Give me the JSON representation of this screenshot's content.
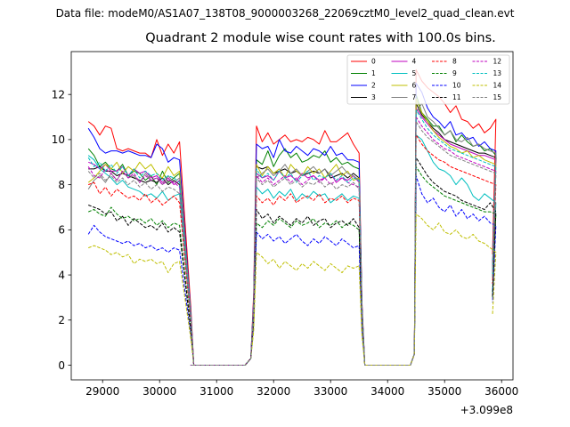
{
  "figure": {
    "suptitle": "Data file: modeM0/AS1A07_138T08_9000003268_22069cztM0_level2_quad_clean.evt",
    "title": "Quadrant 2 module wise count rates with 100.0s bins."
  },
  "chart_data": {
    "type": "line",
    "title": "Quadrant 2 module wise count rates with 100.0s bins.",
    "xlabel": "",
    "ylabel": "",
    "x_offset_label": "+3.099e8",
    "x_offset": 309900000,
    "xlim": [
      28450,
      36200
    ],
    "ylim": [
      -0.65,
      13.9
    ],
    "xticks": [
      29000,
      30000,
      31000,
      32000,
      33000,
      34000,
      35000,
      36000
    ],
    "yticks": [
      0,
      2,
      4,
      6,
      8,
      10,
      12
    ],
    "grid": false,
    "legend": {
      "location": "top-right",
      "ncol": 4
    },
    "segments": [
      {
        "start": 28750,
        "n": 17,
        "ramp_end": 30550,
        "zero_from": 30450
      },
      {
        "start": 31700,
        "n": 19,
        "ramp_start": 31600
      },
      {
        "start": 34500,
        "n": 14
      }
    ],
    "zero_gaps": [
      [
        30550,
        31500
      ],
      [
        33600,
        34400
      ]
    ],
    "series": [
      {
        "name": "0",
        "color": "#ff0000",
        "dash": "solid",
        "seg": [
          [
            10.8,
            10.6,
            10.2,
            10.6,
            10.5,
            9.6,
            9.5,
            9.6,
            9.5,
            9.4,
            9.4,
            9.2,
            10.0,
            9.3,
            9.8,
            9.4,
            9.9
          ],
          [
            10.6,
            9.9,
            10.3,
            9.8,
            10.0,
            10.2,
            9.9,
            10.0,
            9.9,
            10.1,
            10.0,
            9.8,
            10.4,
            9.9,
            9.9,
            10.1,
            10.3,
            9.8,
            9.4
          ],
          [
            13.1,
            12.6,
            12.3,
            12.1,
            11.9,
            11.6,
            11.2,
            11.5,
            10.9,
            10.8,
            10.5,
            10.7,
            10.3,
            10.5,
            10.9
          ]
        ]
      },
      {
        "name": "1",
        "color": "#008000",
        "dash": "solid",
        "seg": [
          [
            9.6,
            9.3,
            8.8,
            9.0,
            8.7,
            8.6,
            8.9,
            8.4,
            8.6,
            8.5,
            8.2,
            8.4,
            8.0,
            8.6,
            8.1,
            8.3,
            8.5
          ],
          [
            9.1,
            8.9,
            9.5,
            8.8,
            9.3,
            9.6,
            9.2,
            9.4,
            9.0,
            9.1,
            9.3,
            9.2,
            9.5,
            9.0,
            9.2,
            8.9,
            9.0,
            8.8,
            8.7
          ],
          [
            12.0,
            11.2,
            10.9,
            10.6,
            10.6,
            10.2,
            10.4,
            9.9,
            10.2,
            9.9,
            9.7,
            9.8,
            9.5,
            9.6,
            9.3
          ]
        ]
      },
      {
        "name": "2",
        "color": "#0000ff",
        "dash": "solid",
        "seg": [
          [
            10.5,
            10.1,
            9.6,
            9.4,
            9.5,
            9.5,
            9.4,
            9.5,
            9.4,
            9.3,
            9.3,
            9.2,
            9.8,
            9.6,
            9.0,
            9.2,
            9.1
          ],
          [
            9.8,
            9.6,
            9.7,
            9.2,
            10.0,
            9.5,
            9.4,
            9.7,
            9.5,
            9.3,
            9.6,
            9.5,
            9.3,
            9.7,
            9.3,
            9.4,
            9.1,
            9.1,
            9.0
          ],
          [
            12.5,
            12.1,
            11.4,
            11.0,
            10.8,
            10.5,
            10.8,
            10.2,
            10.3,
            10.0,
            10.1,
            9.7,
            9.9,
            9.6,
            9.5
          ]
        ]
      },
      {
        "name": "3",
        "color": "#000000",
        "dash": "solid",
        "seg": [
          [
            8.7,
            8.7,
            8.8,
            8.6,
            8.6,
            8.4,
            8.5,
            8.4,
            8.3,
            8.2,
            8.1,
            8.2,
            8.1,
            8.3,
            8.0,
            8.2,
            8.0
          ],
          [
            8.8,
            8.7,
            8.8,
            8.5,
            8.6,
            8.7,
            8.5,
            8.6,
            8.4,
            8.5,
            8.6,
            8.5,
            8.7,
            8.3,
            8.4,
            8.5,
            8.3,
            8.5,
            8.3
          ],
          [
            11.6,
            11.1,
            10.8,
            10.5,
            10.3,
            10.0,
            9.9,
            9.8,
            9.7,
            9.6,
            9.5,
            9.4,
            9.4,
            9.3,
            9.2
          ]
        ]
      },
      {
        "name": "4",
        "color": "#bf00bf",
        "dash": "solid",
        "seg": [
          [
            9.0,
            8.9,
            8.7,
            8.9,
            8.6,
            8.6,
            8.8,
            8.4,
            8.7,
            8.5,
            8.6,
            8.3,
            8.4,
            8.1,
            8.3,
            8.0,
            8.2
          ],
          [
            8.5,
            8.3,
            8.4,
            8.2,
            8.6,
            8.3,
            8.4,
            8.2,
            8.5,
            8.3,
            8.4,
            8.2,
            8.3,
            8.5,
            8.1,
            8.3,
            8.2,
            8.4,
            8.1
          ],
          [
            11.4,
            11.0,
            10.7,
            10.4,
            10.2,
            10.0,
            9.8,
            9.7,
            9.6,
            9.5,
            9.4,
            9.3,
            9.3,
            9.2,
            9.1
          ]
        ]
      },
      {
        "name": "5",
        "color": "#00bfbf",
        "dash": "solid",
        "seg": [
          [
            9.3,
            9.1,
            8.7,
            8.5,
            8.3,
            8.0,
            8.2,
            7.9,
            7.8,
            7.7,
            7.5,
            7.6,
            7.4,
            7.7,
            7.3,
            7.5,
            7.6
          ],
          [
            7.9,
            7.6,
            7.8,
            7.4,
            7.7,
            7.5,
            7.8,
            7.3,
            7.6,
            7.4,
            7.7,
            7.5,
            7.6,
            7.2,
            7.4,
            7.6,
            7.3,
            7.5,
            7.4
          ],
          [
            10.2,
            10.0,
            9.5,
            9.0,
            8.7,
            8.6,
            8.4,
            8.0,
            8.3,
            8.0,
            7.5,
            7.3,
            7.6,
            7.4,
            7.2
          ]
        ]
      },
      {
        "name": "6",
        "color": "#bfbf00",
        "dash": "solid",
        "seg": [
          [
            8.1,
            8.3,
            8.6,
            8.9,
            8.7,
            9.0,
            8.5,
            8.8,
            8.6,
            9.0,
            8.7,
            8.9,
            8.5,
            8.3,
            8.8,
            8.4,
            8.6
          ],
          [
            8.9,
            8.4,
            8.8,
            8.5,
            8.7,
            8.3,
            8.9,
            8.6,
            8.4,
            8.8,
            8.5,
            8.7,
            8.3,
            8.6,
            8.9,
            8.4,
            8.6,
            8.2,
            8.3
          ],
          [
            11.8,
            11.2,
            10.8,
            10.4,
            10.1,
            9.9,
            9.7,
            9.6,
            9.4,
            9.5,
            9.2,
            9.3,
            9.1,
            9.0,
            8.9
          ]
        ]
      },
      {
        "name": "7",
        "color": "#808080",
        "dash": "solid",
        "seg": [
          [
            7.8,
            8.2,
            8.4,
            8.1,
            8.5,
            8.2,
            8.6,
            8.3,
            8.4,
            8.1,
            8.5,
            8.2,
            8.3,
            8.0,
            8.4,
            8.1,
            8.3
          ],
          [
            8.3,
            8.5,
            8.7,
            8.4,
            8.6,
            8.9,
            8.5,
            8.7,
            8.4,
            8.6,
            8.8,
            8.5,
            8.7,
            8.4,
            8.6,
            8.8,
            8.5,
            8.4,
            8.2
          ],
          [
            11.2,
            11.6,
            11.0,
            10.8,
            10.5,
            10.2,
            10.4,
            10.0,
            9.9,
            10.1,
            9.7,
            9.8,
            9.6,
            9.5,
            9.4
          ]
        ]
      },
      {
        "name": "8",
        "color": "#ff0000",
        "dash": "dashed",
        "seg": [
          [
            8.0,
            8.1,
            7.6,
            7.9,
            7.5,
            7.8,
            7.6,
            7.4,
            7.5,
            7.3,
            7.6,
            7.2,
            7.4,
            7.1,
            7.3,
            7.5,
            7.2
          ],
          [
            7.5,
            7.2,
            7.4,
            7.1,
            7.5,
            7.3,
            7.6,
            7.2,
            7.4,
            7.5,
            7.3,
            7.6,
            7.2,
            7.4,
            7.3,
            7.5,
            7.2,
            7.4,
            7.3
          ],
          [
            10.2,
            9.8,
            9.5,
            9.3,
            9.1,
            9.0,
            8.8,
            8.7,
            8.6,
            8.5,
            8.4,
            8.3,
            8.2,
            8.1,
            8.0
          ]
        ]
      },
      {
        "name": "9",
        "color": "#008000",
        "dash": "dashed",
        "seg": [
          [
            6.8,
            6.9,
            6.7,
            6.6,
            7.0,
            6.7,
            6.5,
            6.6,
            6.4,
            6.5,
            6.3,
            6.5,
            6.2,
            6.4,
            6.1,
            6.3,
            6.2
          ],
          [
            6.3,
            6.1,
            6.4,
            6.2,
            6.5,
            6.3,
            6.1,
            6.4,
            6.2,
            6.3,
            6.5,
            6.1,
            6.3,
            6.2,
            6.4,
            6.1,
            6.3,
            6.2,
            6.0
          ],
          [
            8.8,
            8.4,
            8.1,
            7.9,
            7.7,
            7.5,
            7.4,
            7.3,
            7.2,
            7.1,
            7.0,
            6.9,
            6.8,
            6.8,
            6.7
          ]
        ]
      },
      {
        "name": "10",
        "color": "#0000ff",
        "dash": "dashed",
        "seg": [
          [
            5.8,
            6.2,
            5.9,
            5.7,
            5.6,
            5.5,
            5.4,
            5.5,
            5.3,
            5.4,
            5.2,
            5.3,
            5.1,
            5.2,
            5.0,
            5.2,
            5.1
          ],
          [
            5.9,
            5.6,
            5.8,
            5.5,
            5.7,
            5.4,
            5.6,
            5.8,
            5.5,
            5.3,
            5.6,
            5.4,
            5.7,
            5.5,
            5.3,
            5.6,
            5.4,
            5.2,
            5.3
          ],
          [
            8.4,
            7.6,
            7.2,
            7.4,
            7.0,
            6.8,
            7.1,
            6.6,
            6.9,
            6.5,
            6.7,
            6.4,
            6.6,
            6.3,
            6.2
          ]
        ]
      },
      {
        "name": "11",
        "color": "#000000",
        "dash": "dashed",
        "seg": [
          [
            7.1,
            7.0,
            6.9,
            6.7,
            6.8,
            6.4,
            6.6,
            6.2,
            6.5,
            6.3,
            6.1,
            6.2,
            6.0,
            6.3,
            5.9,
            6.1,
            5.9
          ],
          [
            6.9,
            6.5,
            6.7,
            6.3,
            6.6,
            6.4,
            6.2,
            6.5,
            6.3,
            6.6,
            6.2,
            6.4,
            6.5,
            6.1,
            6.3,
            6.4,
            6.2,
            6.5,
            6.1
          ],
          [
            9.2,
            8.8,
            8.4,
            8.1,
            7.9,
            7.7,
            7.6,
            7.5,
            7.3,
            7.2,
            7.1,
            7.0,
            6.9,
            7.2,
            6.8
          ]
        ]
      },
      {
        "name": "12",
        "color": "#bf00bf",
        "dash": "dashed",
        "seg": [
          [
            8.8,
            8.4,
            8.3,
            8.7,
            8.5,
            8.2,
            8.6,
            8.3,
            8.5,
            8.1,
            8.4,
            8.2,
            8.3,
            8.0,
            8.2,
            8.1,
            7.9
          ],
          [
            8.4,
            8.1,
            8.3,
            8.0,
            8.2,
            8.4,
            8.1,
            8.3,
            8.0,
            8.2,
            8.4,
            8.1,
            8.3,
            8.0,
            8.2,
            8.3,
            8.1,
            8.0,
            7.9
          ],
          [
            11.0,
            10.6,
            10.3,
            10.0,
            9.8,
            9.6,
            9.5,
            9.3,
            9.2,
            9.1,
            9.0,
            8.9,
            8.8,
            8.7,
            8.6
          ]
        ]
      },
      {
        "name": "13",
        "color": "#00bfbf",
        "dash": "dashed",
        "seg": [
          [
            9.2,
            8.8,
            9.0,
            8.6,
            8.9,
            8.5,
            8.8,
            8.4,
            8.7,
            8.3,
            8.6,
            8.4,
            8.5,
            8.2,
            8.4,
            8.3,
            8.1
          ],
          [
            8.7,
            8.3,
            8.5,
            8.2,
            8.6,
            8.3,
            8.5,
            8.1,
            8.4,
            8.6,
            8.2,
            8.4,
            8.3,
            8.5,
            8.2,
            8.4,
            8.1,
            8.3,
            8.2
          ],
          [
            11.3,
            10.9,
            10.5,
            10.2,
            10.0,
            9.8,
            9.6,
            9.5,
            9.4,
            9.3,
            9.2,
            9.1,
            9.0,
            8.9,
            8.8
          ]
        ]
      },
      {
        "name": "14",
        "color": "#bfbf00",
        "dash": "dashed",
        "seg": [
          [
            5.2,
            5.3,
            5.2,
            5.1,
            4.9,
            5.0,
            4.8,
            4.9,
            4.5,
            4.7,
            4.6,
            4.7,
            4.5,
            4.6,
            4.1,
            4.5,
            4.6
          ],
          [
            5.0,
            4.8,
            4.5,
            4.7,
            4.3,
            4.6,
            4.4,
            4.2,
            4.5,
            4.3,
            4.6,
            4.4,
            4.2,
            4.5,
            4.3,
            4.1,
            4.4,
            4.3,
            4.4
          ],
          [
            6.7,
            6.5,
            6.2,
            6.0,
            6.3,
            5.9,
            5.8,
            6.0,
            5.7,
            5.6,
            5.8,
            5.5,
            5.4,
            5.2,
            5.0
          ]
        ]
      },
      {
        "name": "15",
        "color": "#808080",
        "dash": "dashed",
        "seg": [
          [
            8.6,
            8.3,
            8.5,
            8.2,
            8.4,
            8.1,
            8.3,
            8.0,
            8.2,
            7.9,
            8.1,
            7.8,
            8.0,
            7.7,
            7.9,
            7.8,
            7.6
          ],
          [
            8.3,
            8.0,
            8.2,
            7.9,
            8.1,
            8.3,
            8.0,
            8.2,
            7.9,
            8.1,
            8.0,
            8.2,
            7.9,
            8.1,
            7.8,
            8.0,
            7.9,
            8.1,
            7.8
          ],
          [
            10.8,
            10.4,
            10.1,
            9.9,
            9.7,
            9.5,
            9.3,
            9.2,
            9.1,
            9.0,
            8.9,
            8.8,
            8.7,
            8.6,
            8.5
          ]
        ]
      }
    ]
  }
}
